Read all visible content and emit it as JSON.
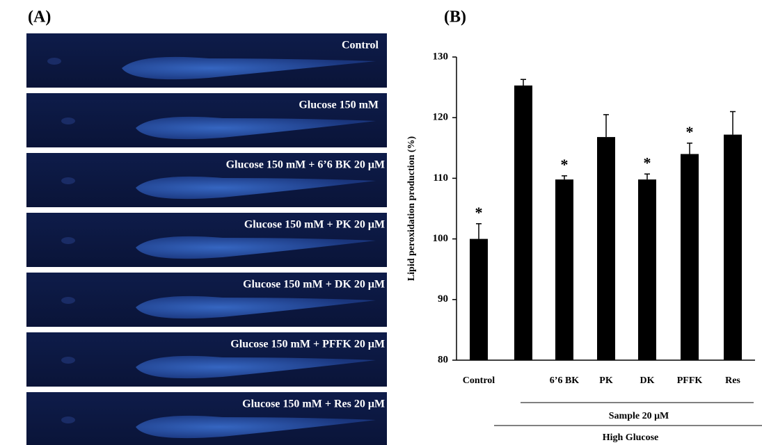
{
  "panel_a": {
    "label": "(A)",
    "captions": [
      "Control",
      "Glucose 150 mM",
      "Glucose 150 mM  +  6’6 BK 20 μM",
      "Glucose 150 mM  +  PK 20 μM",
      "Glucose 150 mM  +  DK 20 μM",
      "Glucose 150 mM  +  PFFK 20 μM",
      "Glucose 150 mM  +  Res 20 μM"
    ]
  },
  "chart_data": {
    "type": "bar",
    "panel_label": "(B)",
    "y_label": "Lipid peroxidation production (%)",
    "categories": [
      "Control",
      null,
      "6’6 BK",
      "PK",
      "DK",
      "PFFK",
      "Res"
    ],
    "values": [
      100,
      125.3,
      109.8,
      116.8,
      109.8,
      114,
      117.2
    ],
    "errors": [
      2.5,
      1,
      0.6,
      3.7,
      0.9,
      1.8,
      3.8
    ],
    "markers": [
      "*",
      null,
      "*",
      null,
      "*",
      "*",
      null
    ],
    "color": "#000000",
    "ylim": [
      80,
      130
    ],
    "yticks": [
      80,
      90,
      100,
      110,
      120,
      130
    ],
    "groups": [
      "Sample 20 μM",
      "High Glucose"
    ]
  }
}
